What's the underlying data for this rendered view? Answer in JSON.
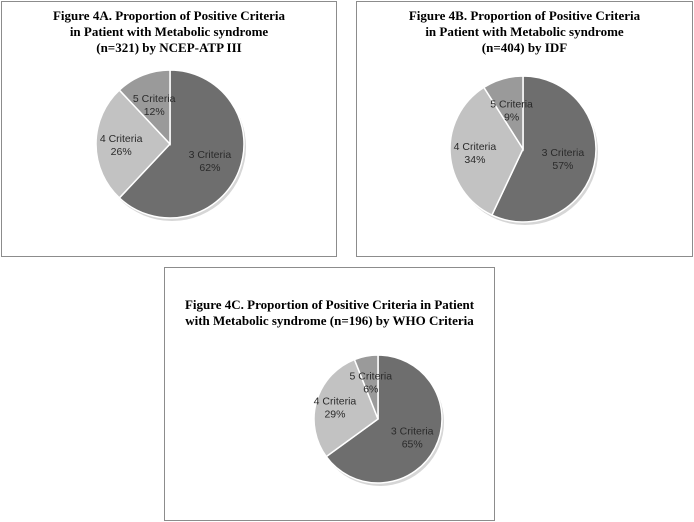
{
  "chart_data": [
    {
      "type": "pie",
      "title_lines": [
        "Figure 4A. Proportion of Positive Criteria",
        "in Patient  with Metabolic syndrome",
        "(n=321) by  NCEP-ATP III"
      ],
      "slices": [
        {
          "name": "3 Criteria",
          "value": 62,
          "label": "62%",
          "color": "#6e6e6e"
        },
        {
          "name": "4 Criteria",
          "value": 26,
          "label": "26%",
          "color": "#c2c2c2"
        },
        {
          "name": "5 Criteria",
          "value": 12,
          "label": "12%",
          "color": "#9a9a9a"
        }
      ]
    },
    {
      "type": "pie",
      "title_lines": [
        "Figure 4B. Proportion of Positive Criteria",
        "in Patient  with Metabolic syndrome",
        "(n=404) by  IDF"
      ],
      "slices": [
        {
          "name": "3 Criteria",
          "value": 57,
          "label": "57%",
          "color": "#6e6e6e"
        },
        {
          "name": "4 Criteria",
          "value": 34,
          "label": "34%",
          "color": "#c2c2c2"
        },
        {
          "name": "5 Criteria",
          "value": 9,
          "label": "9%",
          "color": "#9a9a9a"
        }
      ]
    },
    {
      "type": "pie",
      "title_lines": [
        "Figure 4C.  Proportion of Positive Criteria in Patient",
        "with Metabolic syndrome (n=196) by  WHO Criteria"
      ],
      "slices": [
        {
          "name": "3 Criteria",
          "value": 65,
          "label": "65%",
          "color": "#6e6e6e"
        },
        {
          "name": "4 Criteria",
          "value": 29,
          "label": "29%",
          "color": "#c2c2c2"
        },
        {
          "name": "5 Criteria",
          "value": 6,
          "label": "6%",
          "color": "#9a9a9a"
        }
      ]
    }
  ]
}
